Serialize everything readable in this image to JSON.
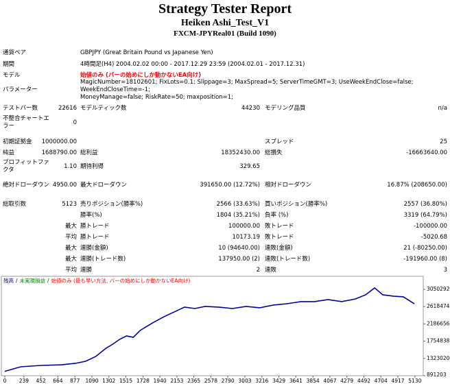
{
  "header": {
    "title": "Strategy Tester Report",
    "subtitle": "Heiken Ashi_Test_V1",
    "server": "FXCM-JPYReal01 (Build 1090)"
  },
  "info": [
    {
      "label": "通貨ペア",
      "value": [
        "GBPJPY (Great Britain Pound vs Japanese Yen)"
      ]
    },
    {
      "label": "期間",
      "value": [
        "4時間足(H4) 2004.02.02 00:00 - 2017.12.29 23:59 (2004.02.01 - 2017.12.31)"
      ]
    },
    {
      "label": "モデル",
      "value": [
        "始値のみ (バーの始めにしか動かないEA向け)"
      ]
    },
    {
      "label": "パラメーター",
      "value": [
        "MagicNumber=18102601; FixLots=0.1; Slippage=3; MaxSpread=5; ServerTimeGMT=3; UseWeekEndClose=false; WeekEndCloseTime=-1;",
        "MoneyManage=false; RiskRate=50; maxposition=1;"
      ]
    }
  ],
  "stats": [
    [
      "テストバー数",
      "22616",
      "モデルティック数",
      "44230",
      "モデリング品質",
      "n/a"
    ],
    [
      "不整合チャートエラー",
      "0",
      null,
      null,
      null,
      null
    ],
    [
      "初期証拠金",
      "1000000.00",
      null,
      null,
      "スプレッド",
      "25"
    ],
    [
      "純益",
      "1688790.00",
      "総利益",
      "18352430.00",
      "総損失",
      "-16663640.00"
    ],
    [
      "プロフィットファクタ",
      "1.10",
      "期待利得",
      "329.65",
      null,
      null
    ],
    [
      "絶対ドローダウン",
      "4950.00",
      "最大ドローダウン",
      "391650.00 (12.72%)",
      "相対ドローダウン",
      "16.87% (208650.00)"
    ],
    [
      "総取引数",
      "5123",
      "売りポジション(勝率%)",
      "2566 (33.63%)",
      "買いポジション(勝率%)",
      "2557 (36.80%)"
    ],
    [
      null,
      null,
      "勝率(%)",
      "1804 (35.21%)",
      "負率 (%)",
      "3319 (64.79%)"
    ],
    [
      null,
      "最大",
      "勝トレード",
      "100000.00",
      "敗トレード",
      "-100000.00"
    ],
    [
      null,
      "平均",
      "勝トレード",
      "10173.19",
      "敗トレード",
      "-5020.68"
    ],
    [
      null,
      "最大",
      "連勝(金額)",
      "10 (94640.00)",
      "連敗(金額)",
      "21 (-80250.00)"
    ],
    [
      null,
      "最大",
      "連勝(トレード数)",
      "137950.00 (2)",
      "連敗(トレード数)",
      "-191960.00 (8)"
    ],
    [
      null,
      "平均",
      "連勝",
      "2",
      "連敗",
      "3"
    ]
  ],
  "chart_data": {
    "type": "line",
    "legend": [
      {
        "name": "残高",
        "color": "#0000a0"
      },
      {
        "name": "未実現損益",
        "color": "#008000"
      },
      {
        "name": "始値のみ (最も早い方法, バーの始めにしか動かないEA向け)",
        "color": "#ff0000"
      }
    ],
    "legend_separator": "/",
    "x": [
      0,
      197,
      453,
      710,
      881,
      1009,
      1137,
      1265,
      1351,
      1436,
      1522,
      1607,
      1693,
      1778,
      1864,
      1992,
      2120,
      2249,
      2377,
      2505,
      2676,
      2847,
      3018,
      3189,
      3360,
      3531,
      3702,
      3873,
      4044,
      4215,
      4386,
      4514,
      4626,
      4728,
      4857,
      4985,
      5123
    ],
    "series": [
      {
        "color": "#0000a0",
        "values": [
          1000000,
          1114000,
          1148000,
          1165000,
          1200000,
          1251000,
          1371000,
          1577000,
          1679000,
          1799000,
          1885000,
          1851000,
          2022000,
          2125000,
          2228000,
          2365000,
          2485000,
          2605000,
          2570000,
          2622000,
          2605000,
          2570000,
          2622000,
          2588000,
          2656000,
          2690000,
          2742000,
          2742000,
          2793000,
          2742000,
          2810000,
          2913000,
          3085000,
          2913000,
          2879000,
          2862000,
          2688790
        ]
      }
    ],
    "xlim": [
      0,
      5200
    ],
    "ylim": [
      891203,
      3375000
    ],
    "xticks": [
      0,
      239,
      452,
      664,
      877,
      1090,
      1302,
      1515,
      1728,
      1940,
      2153,
      2365,
      2578,
      2790,
      3003,
      3216,
      3429,
      3641,
      3854,
      4067,
      4279,
      4492,
      4704,
      4917,
      5130
    ],
    "yticks": [
      891203,
      1323020,
      1754838,
      2186656,
      2618474,
      3050292
    ]
  }
}
